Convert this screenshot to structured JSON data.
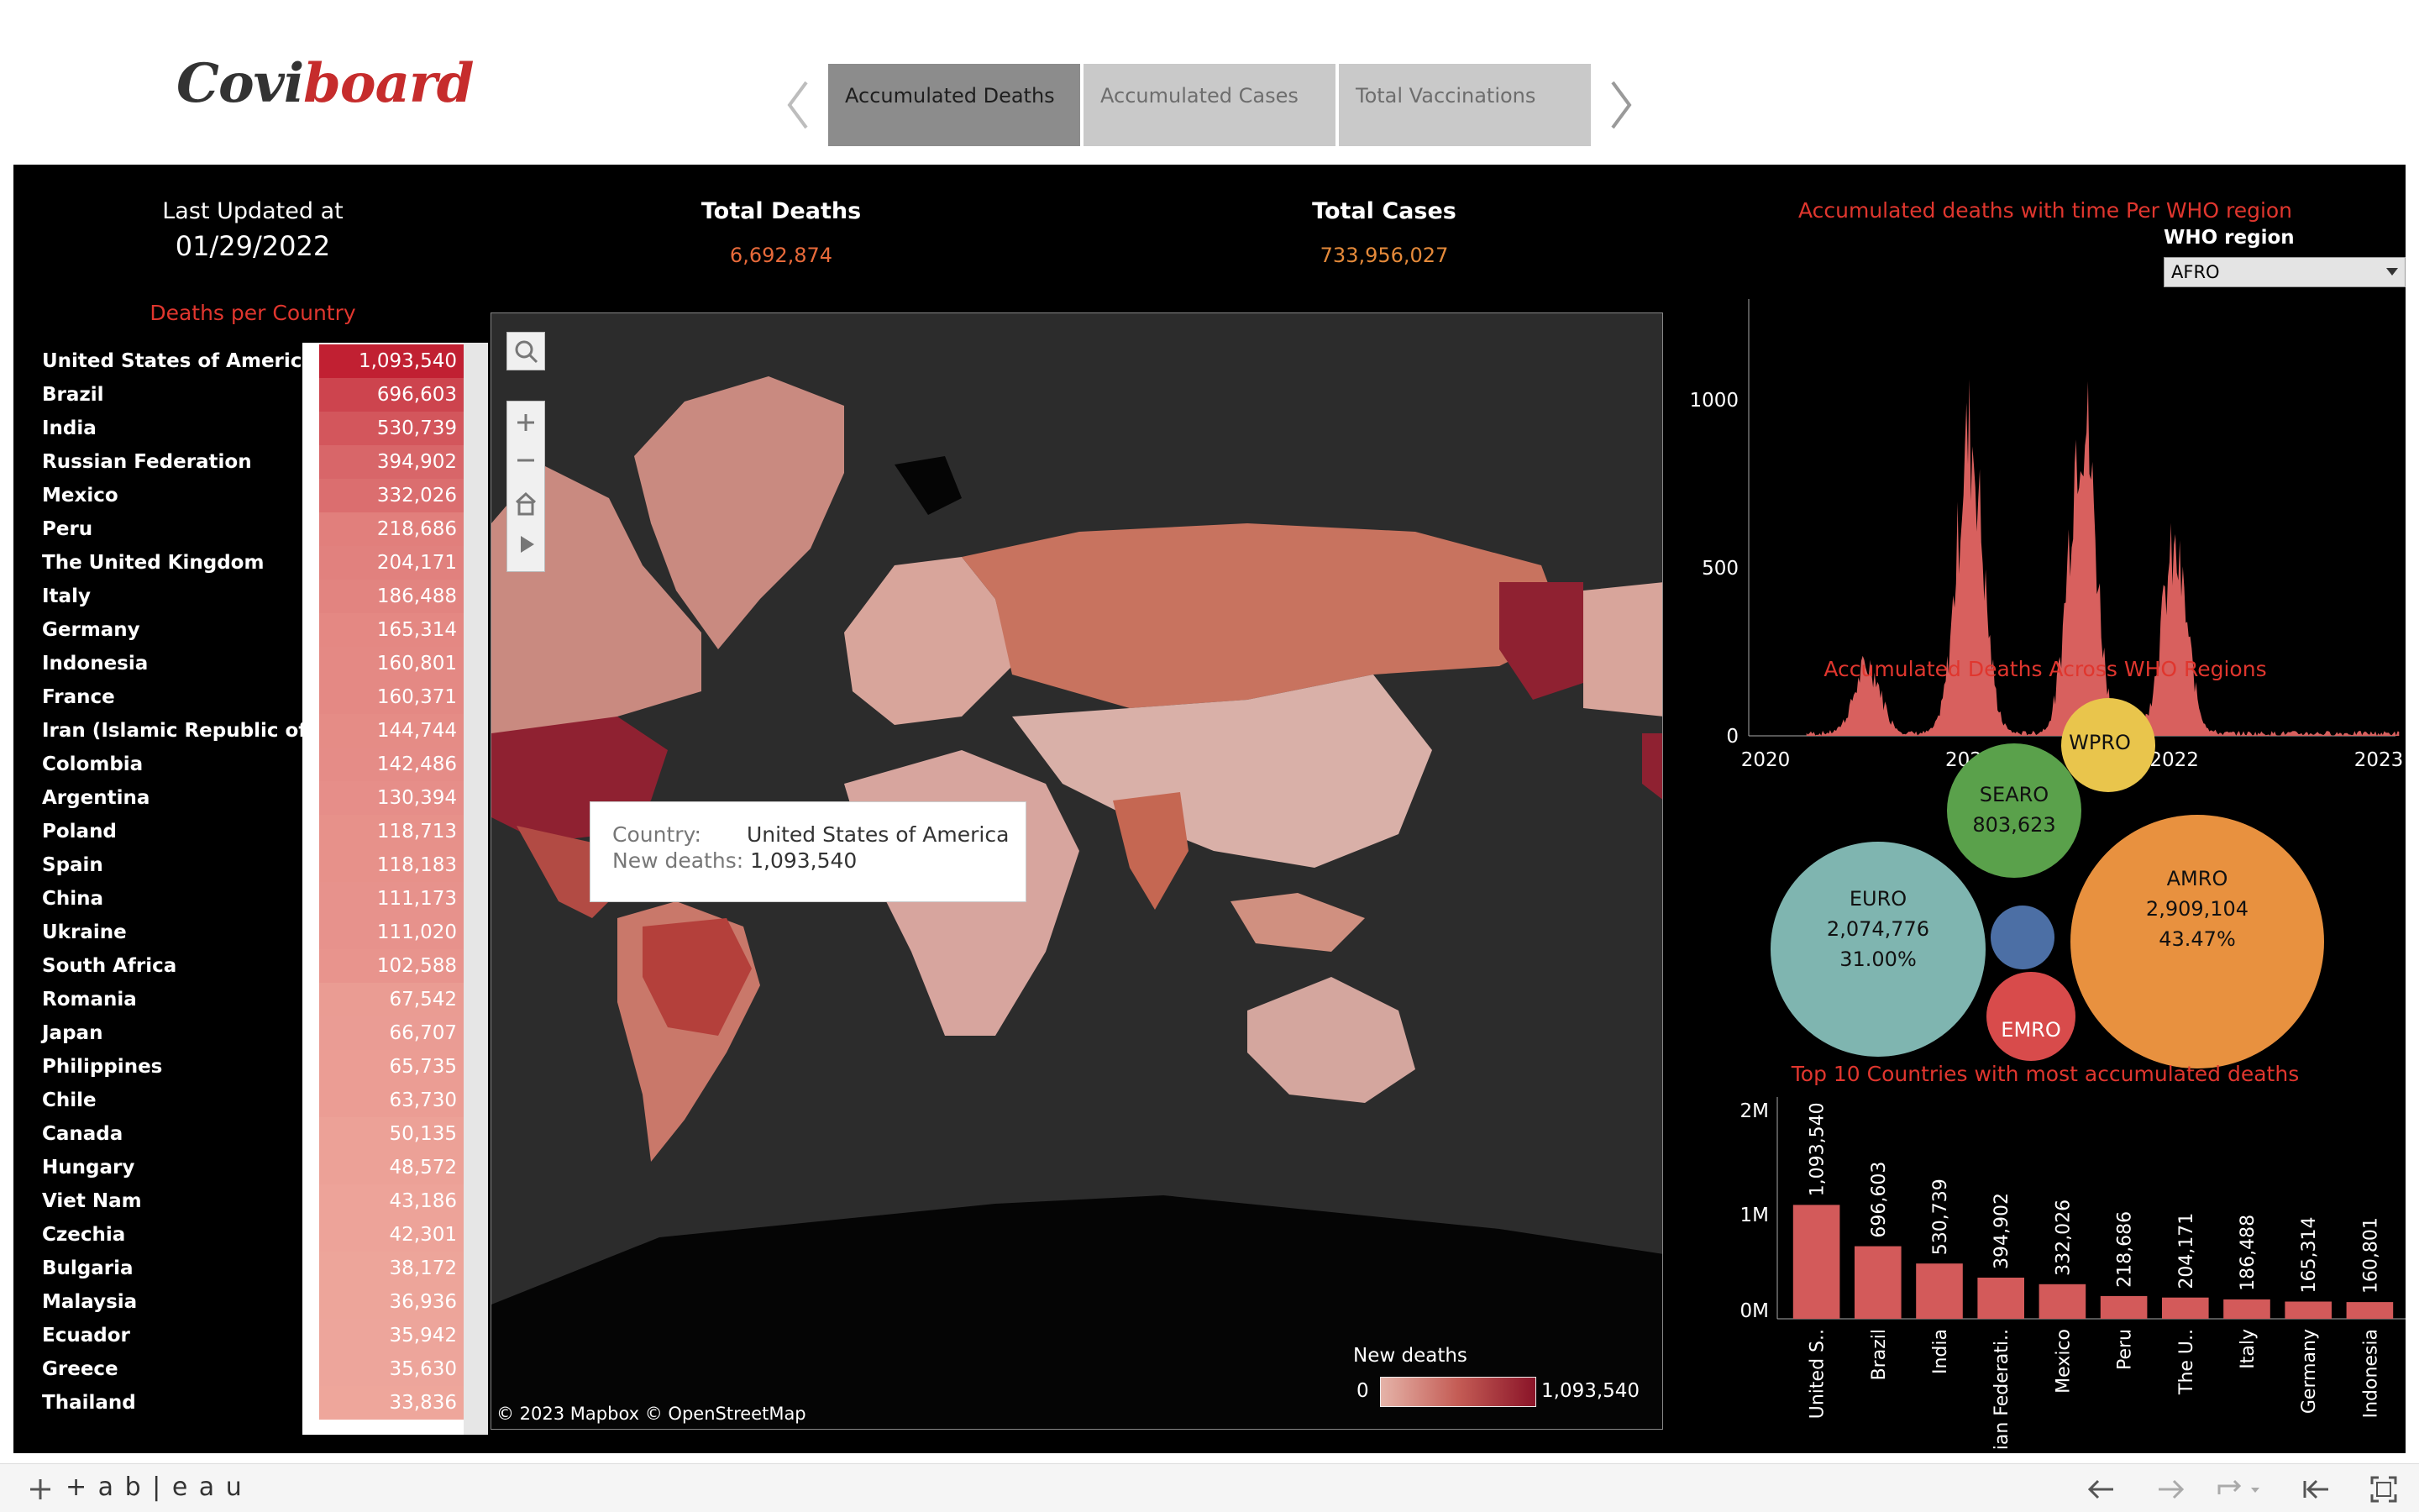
{
  "header": {
    "logo_part1": "Covi",
    "logo_part2": "board",
    "tabs": [
      {
        "label": "Accumulated Deaths",
        "active": true
      },
      {
        "label": "Accumulated Cases",
        "active": false
      },
      {
        "label": "Total Vaccinations",
        "active": false
      }
    ]
  },
  "summary": {
    "last_updated_label": "Last Updated at",
    "last_updated_value": "01/29/2022",
    "total_deaths_label": "Total Deaths",
    "total_deaths_value": "6,692,874",
    "total_cases_label": "Total Cases",
    "total_cases_value": "733,956,027"
  },
  "deaths_per_country": {
    "title": "Deaths per Country",
    "rows": [
      {
        "country": "United States of America",
        "deaths": "1,093,540"
      },
      {
        "country": "Brazil",
        "deaths": "696,603"
      },
      {
        "country": "India",
        "deaths": "530,739"
      },
      {
        "country": "Russian Federation",
        "deaths": "394,902"
      },
      {
        "country": "Mexico",
        "deaths": "332,026"
      },
      {
        "country": "Peru",
        "deaths": "218,686"
      },
      {
        "country": "The United Kingdom",
        "deaths": "204,171"
      },
      {
        "country": "Italy",
        "deaths": "186,488"
      },
      {
        "country": "Germany",
        "deaths": "165,314"
      },
      {
        "country": "Indonesia",
        "deaths": "160,801"
      },
      {
        "country": "France",
        "deaths": "160,371"
      },
      {
        "country": "Iran (Islamic Republic of)",
        "deaths": "144,744"
      },
      {
        "country": "Colombia",
        "deaths": "142,486"
      },
      {
        "country": "Argentina",
        "deaths": "130,394"
      },
      {
        "country": "Poland",
        "deaths": "118,713"
      },
      {
        "country": "Spain",
        "deaths": "118,183"
      },
      {
        "country": "China",
        "deaths": "111,173"
      },
      {
        "country": "Ukraine",
        "deaths": "111,020"
      },
      {
        "country": "South Africa",
        "deaths": "102,588"
      },
      {
        "country": "Romania",
        "deaths": "67,542"
      },
      {
        "country": "Japan",
        "deaths": "66,707"
      },
      {
        "country": "Philippines",
        "deaths": "65,735"
      },
      {
        "country": "Chile",
        "deaths": "63,730"
      },
      {
        "country": "Canada",
        "deaths": "50,135"
      },
      {
        "country": "Hungary",
        "deaths": "48,572"
      },
      {
        "country": "Viet Nam",
        "deaths": "43,186"
      },
      {
        "country": "Czechia",
        "deaths": "42,301"
      },
      {
        "country": "Bulgaria",
        "deaths": "38,172"
      },
      {
        "country": "Malaysia",
        "deaths": "36,936"
      },
      {
        "country": "Ecuador",
        "deaths": "35,942"
      },
      {
        "country": "Greece",
        "deaths": "35,630"
      },
      {
        "country": "Thailand",
        "deaths": "33,836"
      }
    ]
  },
  "map": {
    "tooltip_country_label": "Country:",
    "tooltip_country_value": "United States of America",
    "tooltip_deaths_label": "New deaths:",
    "tooltip_deaths_value": "1,093,540",
    "legend_title": "New deaths",
    "legend_min": "0",
    "legend_max": "1,093,540",
    "attribution": "© 2023 Mapbox  © OpenStreetMap",
    "tools": [
      "search-icon",
      "zoom-in-icon",
      "zoom-out-icon",
      "home-icon",
      "play-icon"
    ]
  },
  "time_chart": {
    "title": "Accumulated deaths with time Per WHO region",
    "filter_label": "WHO region",
    "filter_value": "AFRO"
  },
  "bubble_chart": {
    "title": "Accumulated Deaths Across WHO Regions"
  },
  "bar_chart": {
    "title": "Top 10 Countries with most accumulated deaths"
  },
  "footer": {
    "brand": "+ a b | e a u"
  },
  "colors": {
    "accent_red": "#e0362e",
    "orange": "#e86a3a",
    "bar": "#d35a5a"
  },
  "chart_data": [
    {
      "type": "area",
      "title": "Accumulated deaths with time Per WHO region",
      "x_ticks": [
        "2020",
        "2021",
        "2022",
        "2023"
      ],
      "y_ticks": [
        0,
        500,
        1000
      ],
      "ylim": [
        0,
        1300
      ],
      "peaks": [
        {
          "x": 2020.5,
          "y": 250
        },
        {
          "x": 2021.0,
          "y": 1100
        },
        {
          "x": 2021.55,
          "y": 1200
        },
        {
          "x": 2022.0,
          "y": 650
        }
      ]
    },
    {
      "type": "bubble",
      "title": "Accumulated Deaths Across WHO Regions",
      "bubbles": [
        {
          "name": "AMRO",
          "value": "2,909,104",
          "pct": "43.47%",
          "color": "#e8913f"
        },
        {
          "name": "EURO",
          "value": "2,074,776",
          "pct": "31.00%",
          "color": "#7fb5b0"
        },
        {
          "name": "SEARO",
          "value": "803,623",
          "pct": "",
          "color": "#5aa14b"
        },
        {
          "name": "WPRO",
          "value": "",
          "pct": "",
          "color": "#e9c54c"
        },
        {
          "name": "EMRO",
          "value": "",
          "pct": "",
          "color": "#d84b4b"
        },
        {
          "name": "",
          "value": "",
          "pct": "",
          "color": "#4c6fa5"
        }
      ]
    },
    {
      "type": "bar",
      "title": "Top 10 Countries with most accumulated deaths",
      "categories": [
        "United S..",
        "Brazil",
        "India",
        "Russian Federati..",
        "Mexico",
        "Peru",
        "The U..",
        "Italy",
        "Germany",
        "Indonesia"
      ],
      "values": [
        1093540,
        696603,
        530739,
        394902,
        332026,
        218686,
        204171,
        186488,
        165314,
        160801
      ],
      "value_labels": [
        "1,093,540",
        "696,603",
        "530,739",
        "394,902",
        "332,026",
        "218,686",
        "204,171",
        "186,488",
        "165,314",
        "160,801"
      ],
      "y_ticks": [
        "0M",
        "1M",
        "2M"
      ],
      "ylim": [
        0,
        2000000
      ]
    }
  ]
}
